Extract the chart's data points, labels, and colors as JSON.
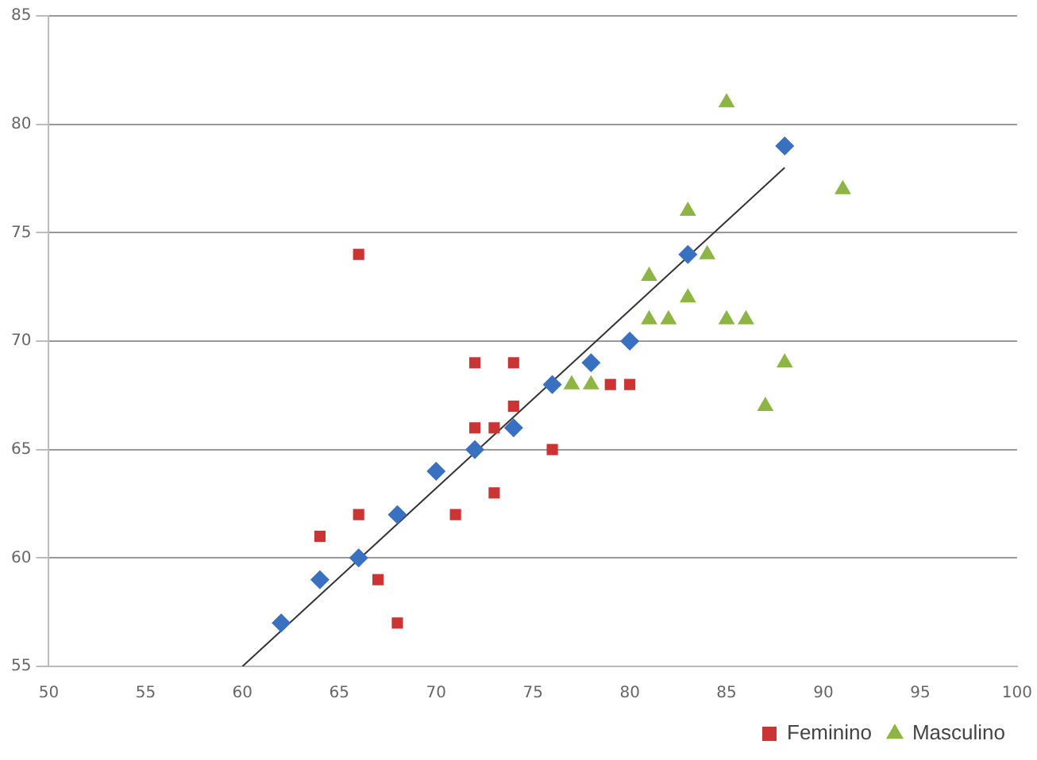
{
  "chart_data": {
    "type": "scatter",
    "xlim": [
      50,
      100
    ],
    "xticks": [
      50,
      55,
      60,
      65,
      70,
      75,
      80,
      85,
      90,
      95,
      100
    ],
    "ylim": [
      55,
      85
    ],
    "yticks": [
      55,
      60,
      65,
      70,
      75,
      80,
      85
    ],
    "grid": "y",
    "legend": "bottom right",
    "series": [
      {
        "name": "Feminino",
        "color": "#cc3333",
        "marker": "square",
        "x": [
          66,
          72,
          74,
          74,
          72,
          73,
          79,
          80,
          76,
          66,
          71,
          73,
          64,
          67,
          68
        ],
        "values": [
          74,
          69,
          69,
          67,
          66,
          66,
          68,
          68,
          65,
          62,
          62,
          63,
          61,
          59,
          57
        ]
      },
      {
        "name": "Masculino",
        "color": "#8db544",
        "marker": "triangle",
        "x": [
          85,
          91,
          83,
          81,
          84,
          83,
          81,
          82,
          85,
          86,
          77,
          78,
          88,
          87
        ],
        "values": [
          81,
          77,
          76,
          73,
          74,
          72,
          71,
          71,
          71,
          71,
          68,
          68,
          69,
          67
        ]
      },
      {
        "color": "#3a70c0",
        "marker": "diamond",
        "x": [
          62,
          64,
          66,
          68,
          70,
          72,
          74,
          76,
          78,
          80,
          83,
          88
        ],
        "values": [
          57,
          59,
          60,
          62,
          64,
          65,
          66,
          68,
          69,
          70,
          74,
          79
        ]
      },
      {
        "type": "line",
        "color": "#333333",
        "marker": "none",
        "x": [
          60,
          88
        ],
        "values": [
          55,
          78
        ]
      }
    ]
  }
}
